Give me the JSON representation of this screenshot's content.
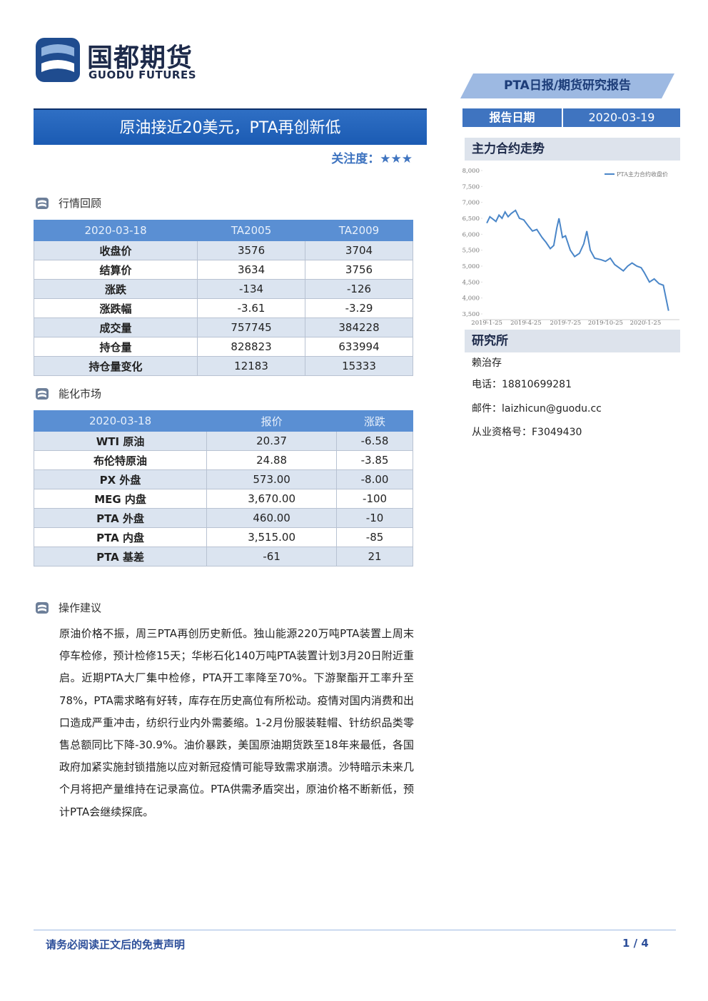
{
  "header": {
    "logo_cn": "国都期货",
    "logo_en": "GUODU FUTURES",
    "report_type": "PTA日报/期货研究报告",
    "date_label": "报告日期",
    "date": "2020-03-19"
  },
  "title": "原油接近20美元，PTA再创新低",
  "attention": {
    "label": "关注度：",
    "stars": "★★★"
  },
  "sections": [
    {
      "heading": "行情回顾",
      "table": {
        "header": [
          "2020-03-18",
          "TA2005",
          "TA2009"
        ],
        "rows": [
          [
            "收盘价",
            "3576",
            "3704"
          ],
          [
            "结算价",
            "3634",
            "3756"
          ],
          [
            "涨跌",
            "-134",
            "-126"
          ],
          [
            "涨跌幅",
            "-3.61",
            "-3.29"
          ],
          [
            "成交量",
            "757745",
            "384228"
          ],
          [
            "持仓量",
            "828823",
            "633994"
          ],
          [
            "持仓量变化",
            "12183",
            "15333"
          ]
        ]
      }
    },
    {
      "heading": "能化市场",
      "table": {
        "header": [
          "2020-03-18",
          "报价",
          "涨跌"
        ],
        "rows": [
          [
            "WTI 原油",
            "20.37",
            "-6.58"
          ],
          [
            "布伦特原油",
            "24.88",
            "-3.85"
          ],
          [
            "PX 外盘",
            "573.00",
            "-8.00"
          ],
          [
            "MEG 内盘",
            "3,670.00",
            "-100"
          ],
          [
            "PTA 外盘",
            "460.00",
            "-10"
          ],
          [
            "PTA 内盘",
            "3,515.00",
            "-85"
          ],
          [
            "PTA 基差",
            "-61",
            "21"
          ]
        ]
      }
    },
    {
      "heading": "操作建议",
      "paragraph": "原油价格不振，周三PTA再创历史新低。独山能源220万吨PTA装置上周末停车检修，预计检修15天；华彬石化140万吨PTA装置计划3月20日附近重启。近期PTA大厂集中检修，PTA开工率降至70%。下游聚酯开工率升至78%，PTA需求略有好转，库存在历史高位有所松动。疫情对国内消费和出口造成严重冲击，纺织行业内外需萎缩。1-2月份服装鞋帽、针纺织品类零售总额同比下降-30.9%。油价暴跌，美国原油期货跌至18年来最低，各国政府加紧实施封锁措施以应对新冠疫情可能导致需求崩溃。沙特暗示未来几个月将把产量维持在记录高位。PTA供需矛盾突出，原油价格不断新低，预计PTA会继续探底。"
    }
  ],
  "sidebar": {
    "chart_heading": "主力合约走势",
    "research_heading": "研究所",
    "analyst": "赖治存",
    "phone": "电话：18810699281",
    "email": "邮件：laizhicun@guodu.cc",
    "license": "从业资格号：F3049430"
  },
  "chart_data": {
    "type": "line",
    "x": [
      "2019-01-25",
      "2019-02-01",
      "2019-02-15",
      "2019-02-22",
      "2019-03-01",
      "2019-03-08",
      "2019-03-15",
      "2019-03-22",
      "2019-04-01",
      "2019-04-10",
      "2019-04-20",
      "2019-05-01",
      "2019-05-10",
      "2019-05-20",
      "2019-06-01",
      "2019-06-10",
      "2019-06-20",
      "2019-06-28",
      "2019-07-05",
      "2019-07-10",
      "2019-07-18",
      "2019-07-25",
      "2019-08-05",
      "2019-08-15",
      "2019-08-26",
      "2019-09-05",
      "2019-09-12",
      "2019-09-20",
      "2019-09-30",
      "2019-10-15",
      "2019-10-25",
      "2019-11-05",
      "2019-11-15",
      "2019-11-25",
      "2019-12-05",
      "2019-12-15",
      "2019-12-25",
      "2020-01-05",
      "2020-01-15",
      "2020-01-22",
      "2020-02-03",
      "2020-02-14",
      "2020-02-25",
      "2020-03-06",
      "2020-03-12",
      "2020-03-18"
    ],
    "series": [
      {
        "name": "PTA主力合约收盘价",
        "color": "#4a86c8",
        "values": [
          6350,
          6550,
          6400,
          6600,
          6500,
          6700,
          6550,
          6650,
          6750,
          6500,
          6450,
          6250,
          6100,
          6150,
          5900,
          5750,
          5550,
          5650,
          6200,
          6500,
          5900,
          5950,
          5500,
          5300,
          5400,
          5700,
          6100,
          5500,
          5250,
          5200,
          5150,
          5250,
          5050,
          4950,
          4850,
          5000,
          5100,
          5000,
          4950,
          4800,
          4500,
          4600,
          4450,
          4400,
          4000,
          3600
        ]
      }
    ],
    "xlim": [
      "2019-01-15",
      "2020-03-25"
    ],
    "xticks": [
      {
        "value": "2019-01-25",
        "label": "2019-1-25"
      },
      {
        "value": "2019-04-25",
        "label": "2019-4-25"
      },
      {
        "value": "2019-07-25",
        "label": "2019-7-25"
      },
      {
        "value": "2019-10-25",
        "label": "2019-10-25"
      },
      {
        "value": "2020-01-25",
        "label": "2020-1-25"
      }
    ],
    "ylim": [
      3500,
      8000
    ],
    "yticks": [
      {
        "value": 3500,
        "label": "3,500"
      },
      {
        "value": 4000,
        "label": "4,000"
      },
      {
        "value": 4500,
        "label": "4,500"
      },
      {
        "value": 5000,
        "label": "5,000"
      },
      {
        "value": 5500,
        "label": "5,500"
      },
      {
        "value": 6000,
        "label": "6,000"
      },
      {
        "value": 6500,
        "label": "6,500"
      },
      {
        "value": 7000,
        "label": "7,000"
      },
      {
        "value": 7500,
        "label": "7,500"
      },
      {
        "value": 8000,
        "label": "8,000"
      }
    ],
    "grid": false,
    "legend": "top-right"
  },
  "footer": {
    "disclaimer": "请务必阅读正文后的免责声明",
    "page": "1 / 4"
  }
}
